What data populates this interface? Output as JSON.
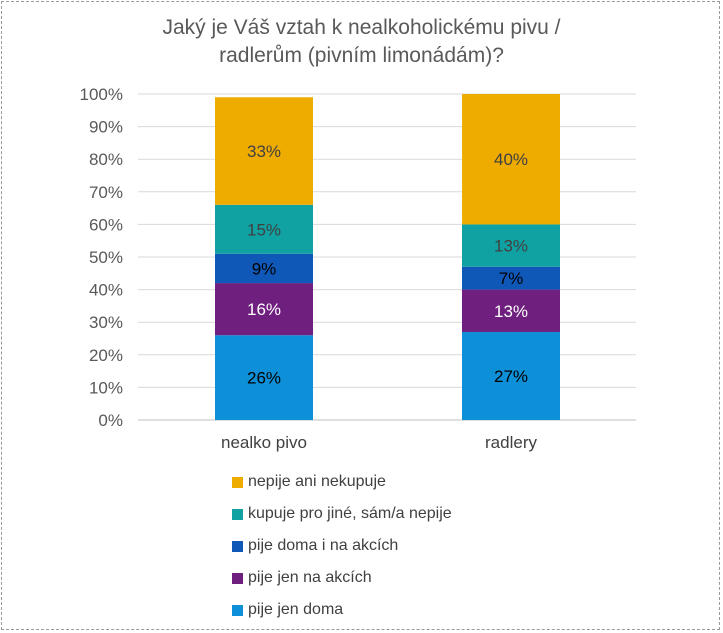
{
  "chart_data": {
    "type": "bar",
    "stacked": true,
    "title_lines": [
      "Jaký je Váš vztah k nealkoholickému pivu /",
      "radlerům (pivním limonádám)?"
    ],
    "categories": [
      "nealko pivo",
      "radlery"
    ],
    "yticks": [
      "0%",
      "10%",
      "20%",
      "30%",
      "40%",
      "50%",
      "60%",
      "70%",
      "80%",
      "90%",
      "100%"
    ],
    "ylim": [
      0,
      100
    ],
    "grid": true,
    "legend_position": "bottom",
    "series": [
      {
        "name": "pije jen doma",
        "color": "#0e90d8",
        "values": [
          26,
          27
        ],
        "labels": [
          "26%",
          "27%"
        ]
      },
      {
        "name": "pije jen na akcích",
        "color": "#6f1f7e",
        "values": [
          16,
          13
        ],
        "labels": [
          "16%",
          "13%"
        ]
      },
      {
        "name": "pije doma i na akcích",
        "color": "#1058b8",
        "values": [
          9,
          7
        ],
        "labels": [
          "9%",
          "7%"
        ]
      },
      {
        "name": "kupuje pro jiné, sám/a nepije",
        "color": "#10a2a2",
        "values": [
          15,
          13
        ],
        "labels": [
          "15%",
          "13%"
        ]
      },
      {
        "name": "nepije ani nekupuje",
        "color": "#efac00",
        "values": [
          33,
          40
        ],
        "labels": [
          "33%",
          "40%"
        ]
      }
    ],
    "legend_order": [
      4,
      3,
      2,
      1,
      0
    ]
  }
}
